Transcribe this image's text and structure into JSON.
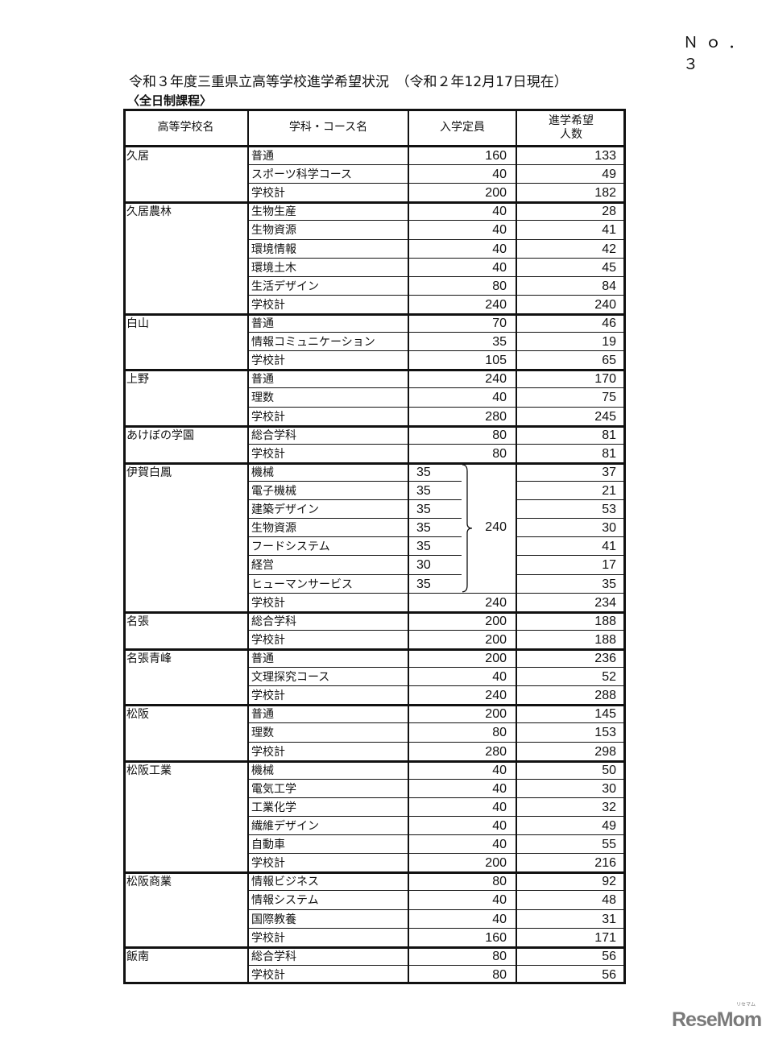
{
  "page_number": "Ｎｏ．３",
  "title": "令和３年度三重県立高等学校進学希望状況　（令和２年12月17日現在）",
  "subtitle": "〈全日制課程〉",
  "table": {
    "headers": [
      "高等学校名",
      "学科・コース名",
      "入学定員",
      "進学希望\n人数"
    ],
    "schools": [
      {
        "name": "久居",
        "rows": [
          [
            "普通",
            "160",
            "133"
          ],
          [
            "スポーツ科学コース",
            "40",
            "49"
          ],
          [
            "学校計",
            "200",
            "182"
          ]
        ]
      },
      {
        "name": "久居農林",
        "rows": [
          [
            "生物生産",
            "40",
            "28"
          ],
          [
            "生物資源",
            "40",
            "41"
          ],
          [
            "環境情報",
            "40",
            "42"
          ],
          [
            "環境土木",
            "40",
            "45"
          ],
          [
            "生活デザイン",
            "80",
            "84"
          ],
          [
            "学校計",
            "240",
            "240"
          ]
        ]
      },
      {
        "name": "白山",
        "rows": [
          [
            "普通",
            "70",
            "46"
          ],
          [
            "情報コミュニケーション",
            "35",
            "19"
          ],
          [
            "学校計",
            "105",
            "65"
          ]
        ]
      },
      {
        "name": "上野",
        "rows": [
          [
            "普通",
            "240",
            "170"
          ],
          [
            "理数",
            "40",
            "75"
          ],
          [
            "学校計",
            "280",
            "245"
          ]
        ]
      },
      {
        "name": "あけぼの学園",
        "rows": [
          [
            "総合学科",
            "80",
            "81"
          ],
          [
            "学校計",
            "80",
            "81"
          ]
        ]
      },
      {
        "name": "伊賀白鳳",
        "group_capacity": "240",
        "rows": [
          [
            "機械",
            "35",
            "37"
          ],
          [
            "電子機械",
            "35",
            "21"
          ],
          [
            "建築デザイン",
            "35",
            "53"
          ],
          [
            "生物資源",
            "35",
            "30"
          ],
          [
            "フードシステム",
            "35",
            "41"
          ],
          [
            "経営",
            "30",
            "17"
          ],
          [
            "ヒューマンサービス",
            "35",
            "35"
          ],
          [
            "学校計",
            "240",
            "234"
          ]
        ]
      },
      {
        "name": "名張",
        "rows": [
          [
            "総合学科",
            "200",
            "188"
          ],
          [
            "学校計",
            "200",
            "188"
          ]
        ]
      },
      {
        "name": "名張青峰",
        "rows": [
          [
            "普通",
            "200",
            "236"
          ],
          [
            "文理探究コース",
            "40",
            "52"
          ],
          [
            "学校計",
            "240",
            "288"
          ]
        ]
      },
      {
        "name": "松阪",
        "rows": [
          [
            "普通",
            "200",
            "145"
          ],
          [
            "理数",
            "80",
            "153"
          ],
          [
            "学校計",
            "280",
            "298"
          ]
        ]
      },
      {
        "name": "松阪工業",
        "rows": [
          [
            "機械",
            "40",
            "50"
          ],
          [
            "電気工学",
            "40",
            "30"
          ],
          [
            "工業化学",
            "40",
            "32"
          ],
          [
            "繊維デザイン",
            "40",
            "49"
          ],
          [
            "自動車",
            "40",
            "55"
          ],
          [
            "学校計",
            "200",
            "216"
          ]
        ]
      },
      {
        "name": "松阪商業",
        "rows": [
          [
            "情報ビジネス",
            "80",
            "92"
          ],
          [
            "情報システム",
            "40",
            "48"
          ],
          [
            "国際教養",
            "40",
            "31"
          ],
          [
            "学校計",
            "160",
            "171"
          ]
        ]
      },
      {
        "name": "飯南",
        "rows": [
          [
            "総合学科",
            "80",
            "56"
          ],
          [
            "学校計",
            "80",
            "56"
          ]
        ]
      }
    ]
  },
  "logo": {
    "text": "ReseMom",
    "small": "リセマム"
  }
}
